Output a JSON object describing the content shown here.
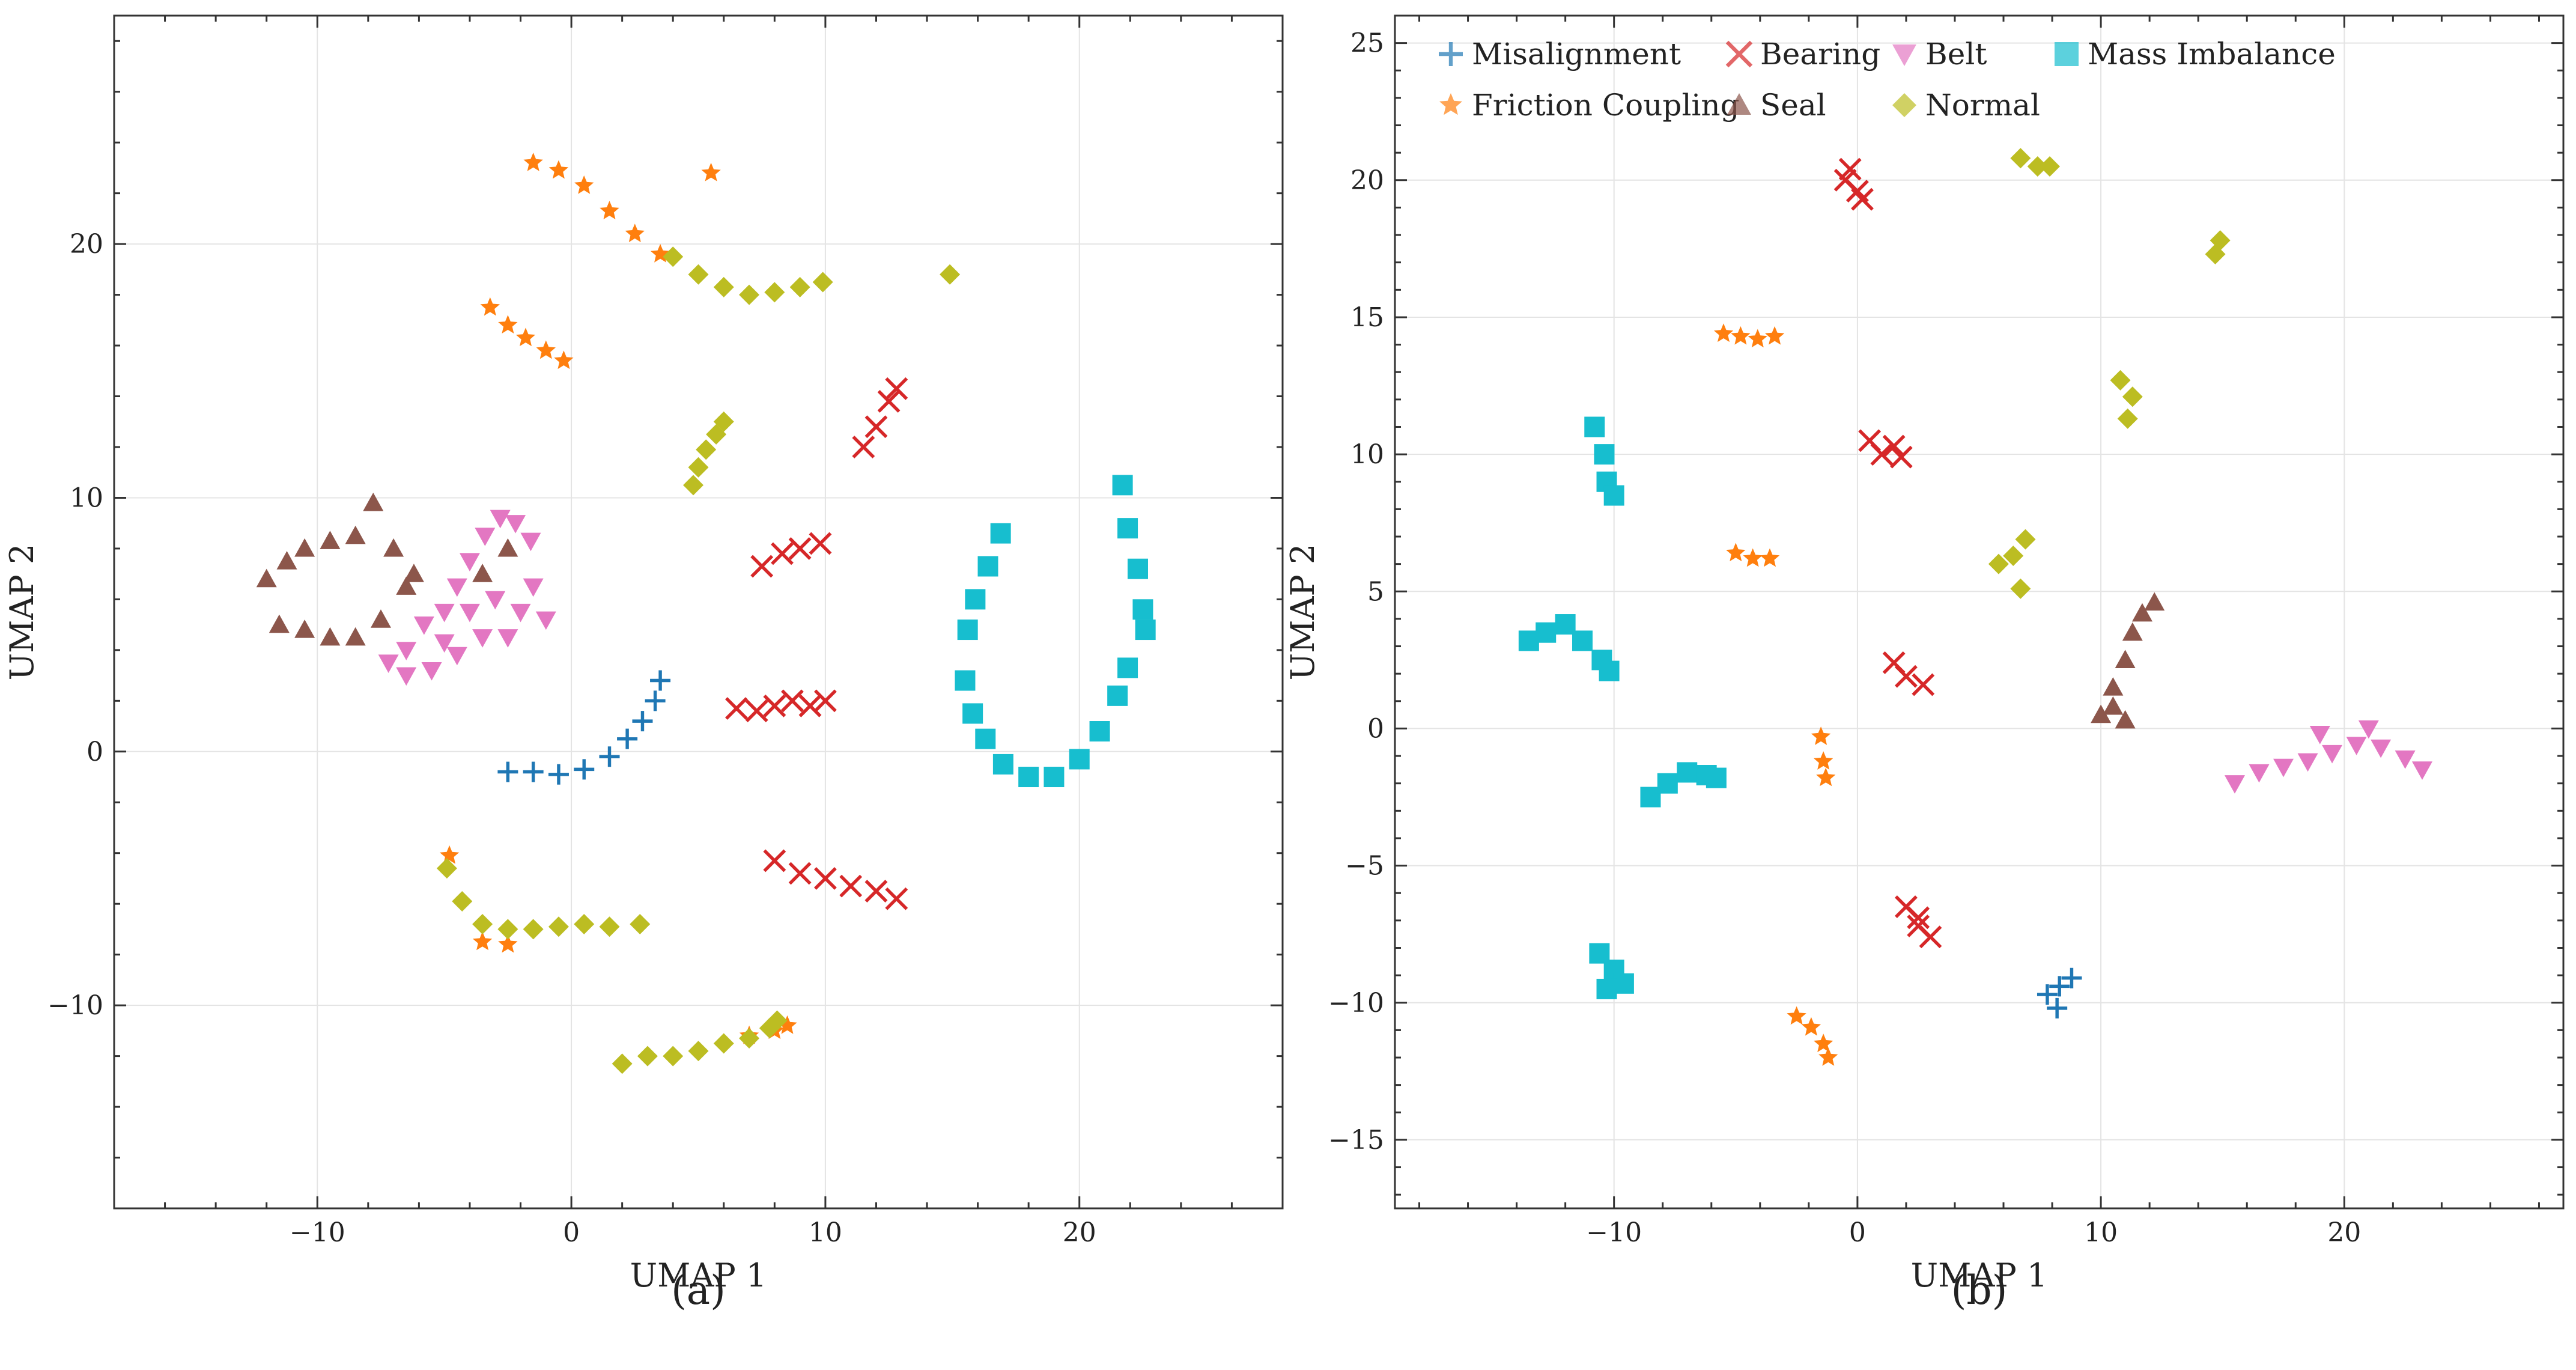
{
  "chart_data": [
    {
      "type": "scatter",
      "panel": "a",
      "caption": "(a)",
      "xlabel": "UMAP 1",
      "ylabel": "UMAP 2",
      "xlim": [
        -18,
        28
      ],
      "ylim": [
        -18,
        29
      ],
      "xticks": [
        -10,
        0,
        10,
        20
      ],
      "yticks": [
        -10,
        0,
        10,
        20
      ],
      "xtick_labels": [
        "−10",
        "0",
        "10",
        "20"
      ],
      "ytick_labels": [
        "−10",
        "0",
        "10",
        "20"
      ],
      "grid": true,
      "series": [
        {
          "name": "Misalignment",
          "marker": "plus",
          "color": "#1f77b4",
          "points": [
            [
              -2.5,
              -0.8
            ],
            [
              -1.5,
              -0.8
            ],
            [
              -0.5,
              -0.9
            ],
            [
              0.5,
              -0.7
            ],
            [
              1.5,
              -0.2
            ],
            [
              2.2,
              0.5
            ],
            [
              2.8,
              1.2
            ],
            [
              3.3,
              2.0
            ],
            [
              3.5,
              2.8
            ]
          ]
        },
        {
          "name": "Bearing",
          "marker": "x",
          "color": "#d62728",
          "points": [
            [
              11.5,
              12.0
            ],
            [
              12.0,
              12.8
            ],
            [
              12.5,
              13.8
            ],
            [
              12.8,
              14.3
            ],
            [
              7.5,
              7.3
            ],
            [
              8.3,
              7.8
            ],
            [
              9.0,
              8.0
            ],
            [
              9.8,
              8.2
            ],
            [
              6.5,
              1.7
            ],
            [
              7.3,
              1.6
            ],
            [
              8.0,
              1.8
            ],
            [
              8.7,
              2.0
            ],
            [
              9.4,
              1.8
            ],
            [
              10.0,
              2.0
            ],
            [
              8.0,
              -4.3
            ],
            [
              9.0,
              -4.8
            ],
            [
              10.0,
              -5.0
            ],
            [
              11.0,
              -5.3
            ],
            [
              12.0,
              -5.5
            ],
            [
              12.8,
              -5.8
            ]
          ]
        },
        {
          "name": "Belt",
          "marker": "triangle-down",
          "color": "#e377c2",
          "points": [
            [
              -7.2,
              3.5
            ],
            [
              -6.5,
              4.0
            ],
            [
              -5.8,
              5.0
            ],
            [
              -5.0,
              5.5
            ],
            [
              -4.5,
              6.5
            ],
            [
              -4.0,
              7.5
            ],
            [
              -3.4,
              8.5
            ],
            [
              -2.8,
              9.2
            ],
            [
              -2.2,
              9.0
            ],
            [
              -1.6,
              8.3
            ],
            [
              -3.0,
              6.0
            ],
            [
              -2.0,
              5.5
            ],
            [
              -1.0,
              5.2
            ],
            [
              -3.5,
              4.5
            ],
            [
              -4.5,
              3.8
            ],
            [
              -5.5,
              3.2
            ],
            [
              -6.5,
              3.0
            ],
            [
              -2.5,
              4.5
            ],
            [
              -1.5,
              6.5
            ],
            [
              -4.0,
              5.5
            ],
            [
              -5.0,
              4.3
            ]
          ]
        },
        {
          "name": "Mass Imbalance",
          "marker": "square",
          "color": "#17becf",
          "points": [
            [
              15.5,
              2.8
            ],
            [
              15.8,
              1.5
            ],
            [
              16.3,
              0.5
            ],
            [
              17.0,
              -0.5
            ],
            [
              18.0,
              -1.0
            ],
            [
              19.0,
              -1.0
            ],
            [
              20.0,
              -0.3
            ],
            [
              20.8,
              0.8
            ],
            [
              21.5,
              2.2
            ],
            [
              21.9,
              3.3
            ],
            [
              15.6,
              4.8
            ],
            [
              15.9,
              6.0
            ],
            [
              16.4,
              7.3
            ],
            [
              16.9,
              8.6
            ],
            [
              21.7,
              10.5
            ],
            [
              21.9,
              8.8
            ],
            [
              22.3,
              7.2
            ],
            [
              22.5,
              5.6
            ],
            [
              22.6,
              4.8
            ]
          ]
        },
        {
          "name": "Seal",
          "marker": "triangle-up",
          "color": "#8c564b",
          "points": [
            [
              -12.0,
              6.8
            ],
            [
              -11.2,
              7.5
            ],
            [
              -10.5,
              8.0
            ],
            [
              -9.5,
              8.3
            ],
            [
              -8.5,
              8.5
            ],
            [
              -7.8,
              9.8
            ],
            [
              -7.0,
              8.0
            ],
            [
              -6.2,
              7.0
            ],
            [
              -11.5,
              5.0
            ],
            [
              -10.5,
              4.8
            ],
            [
              -9.5,
              4.5
            ],
            [
              -8.5,
              4.5
            ],
            [
              -7.5,
              5.2
            ],
            [
              -6.5,
              6.5
            ],
            [
              -3.5,
              7.0
            ],
            [
              -2.5,
              8.0
            ]
          ]
        },
        {
          "name": "Friction Coupling",
          "marker": "star",
          "color": "#ff7f0e",
          "points": [
            [
              -1.5,
              23.2
            ],
            [
              -0.5,
              22.9
            ],
            [
              0.5,
              22.3
            ],
            [
              1.5,
              21.3
            ],
            [
              2.5,
              20.4
            ],
            [
              3.5,
              19.6
            ],
            [
              5.5,
              22.8
            ],
            [
              -3.2,
              17.5
            ],
            [
              -2.5,
              16.8
            ],
            [
              -1.8,
              16.3
            ],
            [
              -1.0,
              15.8
            ],
            [
              -0.3,
              15.4
            ],
            [
              -4.8,
              -4.1
            ],
            [
              -3.5,
              -7.5
            ],
            [
              -2.5,
              -7.6
            ],
            [
              7.0,
              -11.2
            ],
            [
              8.0,
              -11.0
            ],
            [
              8.5,
              -10.8
            ]
          ]
        },
        {
          "name": "Normal",
          "marker": "diamond",
          "color": "#bcbd22",
          "points": [
            [
              4.0,
              19.5
            ],
            [
              5.0,
              18.8
            ],
            [
              6.0,
              18.3
            ],
            [
              7.0,
              18.0
            ],
            [
              8.0,
              18.1
            ],
            [
              9.0,
              18.3
            ],
            [
              9.9,
              18.5
            ],
            [
              14.9,
              18.8
            ],
            [
              4.8,
              10.5
            ],
            [
              5.0,
              11.2
            ],
            [
              5.3,
              11.9
            ],
            [
              5.7,
              12.5
            ],
            [
              6.0,
              13.0
            ],
            [
              -4.9,
              -4.6
            ],
            [
              -4.3,
              -5.9
            ],
            [
              -3.5,
              -6.8
            ],
            [
              -2.5,
              -7.0
            ],
            [
              -1.5,
              -7.0
            ],
            [
              -0.5,
              -6.9
            ],
            [
              0.5,
              -6.8
            ],
            [
              1.5,
              -6.9
            ],
            [
              2.7,
              -6.8
            ],
            [
              2.0,
              -12.3
            ],
            [
              3.0,
              -12.0
            ],
            [
              4.0,
              -12.0
            ],
            [
              5.0,
              -11.8
            ],
            [
              6.0,
              -11.5
            ],
            [
              7.0,
              -11.3
            ],
            [
              7.8,
              -10.9
            ],
            [
              8.1,
              -10.6
            ]
          ]
        }
      ]
    },
    {
      "type": "scatter",
      "panel": "b",
      "caption": "(b)",
      "xlabel": "UMAP 1",
      "ylabel": "UMAP 2",
      "xlim": [
        -19,
        29
      ],
      "ylim": [
        -17.5,
        26
      ],
      "xticks": [
        -10,
        0,
        10,
        20
      ],
      "yticks": [
        -15,
        -10,
        -5,
        0,
        5,
        10,
        15,
        20,
        25
      ],
      "xtick_labels": [
        "−10",
        "0",
        "10",
        "20"
      ],
      "ytick_labels": [
        "−15",
        "−10",
        "−5",
        "0",
        "5",
        "10",
        "15",
        "20",
        "25"
      ],
      "grid": true,
      "legend": {
        "location": "top-left",
        "columns": 4,
        "entries": [
          "Misalignment",
          "Bearing",
          "Belt",
          "Mass Imbalance",
          "Friction Coupling",
          "Seal",
          "Normal"
        ]
      },
      "series": [
        {
          "name": "Misalignment",
          "marker": "plus",
          "color": "#1f77b4",
          "points": [
            [
              7.8,
              -9.7
            ],
            [
              8.3,
              -9.4
            ],
            [
              8.8,
              -9.1
            ],
            [
              8.2,
              -10.2
            ]
          ]
        },
        {
          "name": "Bearing",
          "marker": "x",
          "color": "#d62728",
          "points": [
            [
              -0.5,
              20.0
            ],
            [
              0.0,
              19.6
            ],
            [
              -0.3,
              20.4
            ],
            [
              0.2,
              19.3
            ],
            [
              0.5,
              10.5
            ],
            [
              1.0,
              10.0
            ],
            [
              1.5,
              10.3
            ],
            [
              1.8,
              9.9
            ],
            [
              1.5,
              2.4
            ],
            [
              2.0,
              1.9
            ],
            [
              2.7,
              1.6
            ],
            [
              2.0,
              -6.5
            ],
            [
              2.5,
              -7.2
            ],
            [
              3.0,
              -7.6
            ],
            [
              2.5,
              -6.9
            ]
          ]
        },
        {
          "name": "Belt",
          "marker": "triangle-down",
          "color": "#e377c2",
          "points": [
            [
              15.5,
              -2.0
            ],
            [
              16.5,
              -1.6
            ],
            [
              17.5,
              -1.4
            ],
            [
              18.5,
              -1.2
            ],
            [
              19.5,
              -0.9
            ],
            [
              20.5,
              -0.6
            ],
            [
              21.5,
              -0.7
            ],
            [
              22.5,
              -1.1
            ],
            [
              23.2,
              -1.5
            ],
            [
              19.0,
              -0.2
            ],
            [
              21.0,
              0.0
            ]
          ]
        },
        {
          "name": "Mass Imbalance",
          "marker": "square",
          "color": "#17becf",
          "points": [
            [
              -10.8,
              11.0
            ],
            [
              -10.4,
              10.0
            ],
            [
              -10.3,
              9.0
            ],
            [
              -10.0,
              8.5
            ],
            [
              -13.5,
              3.2
            ],
            [
              -12.8,
              3.5
            ],
            [
              -12.0,
              3.8
            ],
            [
              -11.3,
              3.2
            ],
            [
              -10.5,
              2.5
            ],
            [
              -10.2,
              2.1
            ],
            [
              -8.5,
              -2.5
            ],
            [
              -7.8,
              -2.0
            ],
            [
              -7.0,
              -1.6
            ],
            [
              -6.2,
              -1.7
            ],
            [
              -5.8,
              -1.8
            ],
            [
              -10.6,
              -8.2
            ],
            [
              -10.0,
              -8.8
            ],
            [
              -9.6,
              -9.3
            ],
            [
              -10.3,
              -9.5
            ]
          ]
        },
        {
          "name": "Seal",
          "marker": "triangle-up",
          "color": "#8c564b",
          "points": [
            [
              10.0,
              0.5
            ],
            [
              10.5,
              1.5
            ],
            [
              11.0,
              2.5
            ],
            [
              11.3,
              3.5
            ],
            [
              11.7,
              4.2
            ],
            [
              12.2,
              4.6
            ],
            [
              11.0,
              0.3
            ],
            [
              10.5,
              0.8
            ]
          ]
        },
        {
          "name": "Friction Coupling",
          "marker": "star",
          "color": "#ff7f0e",
          "points": [
            [
              -5.5,
              14.4
            ],
            [
              -4.8,
              14.3
            ],
            [
              -4.1,
              14.2
            ],
            [
              -3.4,
              14.3
            ],
            [
              -5.0,
              6.4
            ],
            [
              -4.3,
              6.2
            ],
            [
              -3.6,
              6.2
            ],
            [
              -1.5,
              -0.3
            ],
            [
              -1.4,
              -1.2
            ],
            [
              -1.3,
              -1.8
            ],
            [
              -2.5,
              -10.5
            ],
            [
              -1.9,
              -10.9
            ],
            [
              -1.4,
              -11.5
            ],
            [
              -1.2,
              -12.0
            ]
          ]
        },
        {
          "name": "Normal",
          "marker": "diamond",
          "color": "#bcbd22",
          "points": [
            [
              6.7,
              20.8
            ],
            [
              7.4,
              20.5
            ],
            [
              7.9,
              20.5
            ],
            [
              14.7,
              17.3
            ],
            [
              14.9,
              17.8
            ],
            [
              10.8,
              12.7
            ],
            [
              11.3,
              12.1
            ],
            [
              11.1,
              11.3
            ],
            [
              5.8,
              6.0
            ],
            [
              6.4,
              6.3
            ],
            [
              6.7,
              5.1
            ],
            [
              6.9,
              6.9
            ]
          ]
        }
      ]
    }
  ]
}
